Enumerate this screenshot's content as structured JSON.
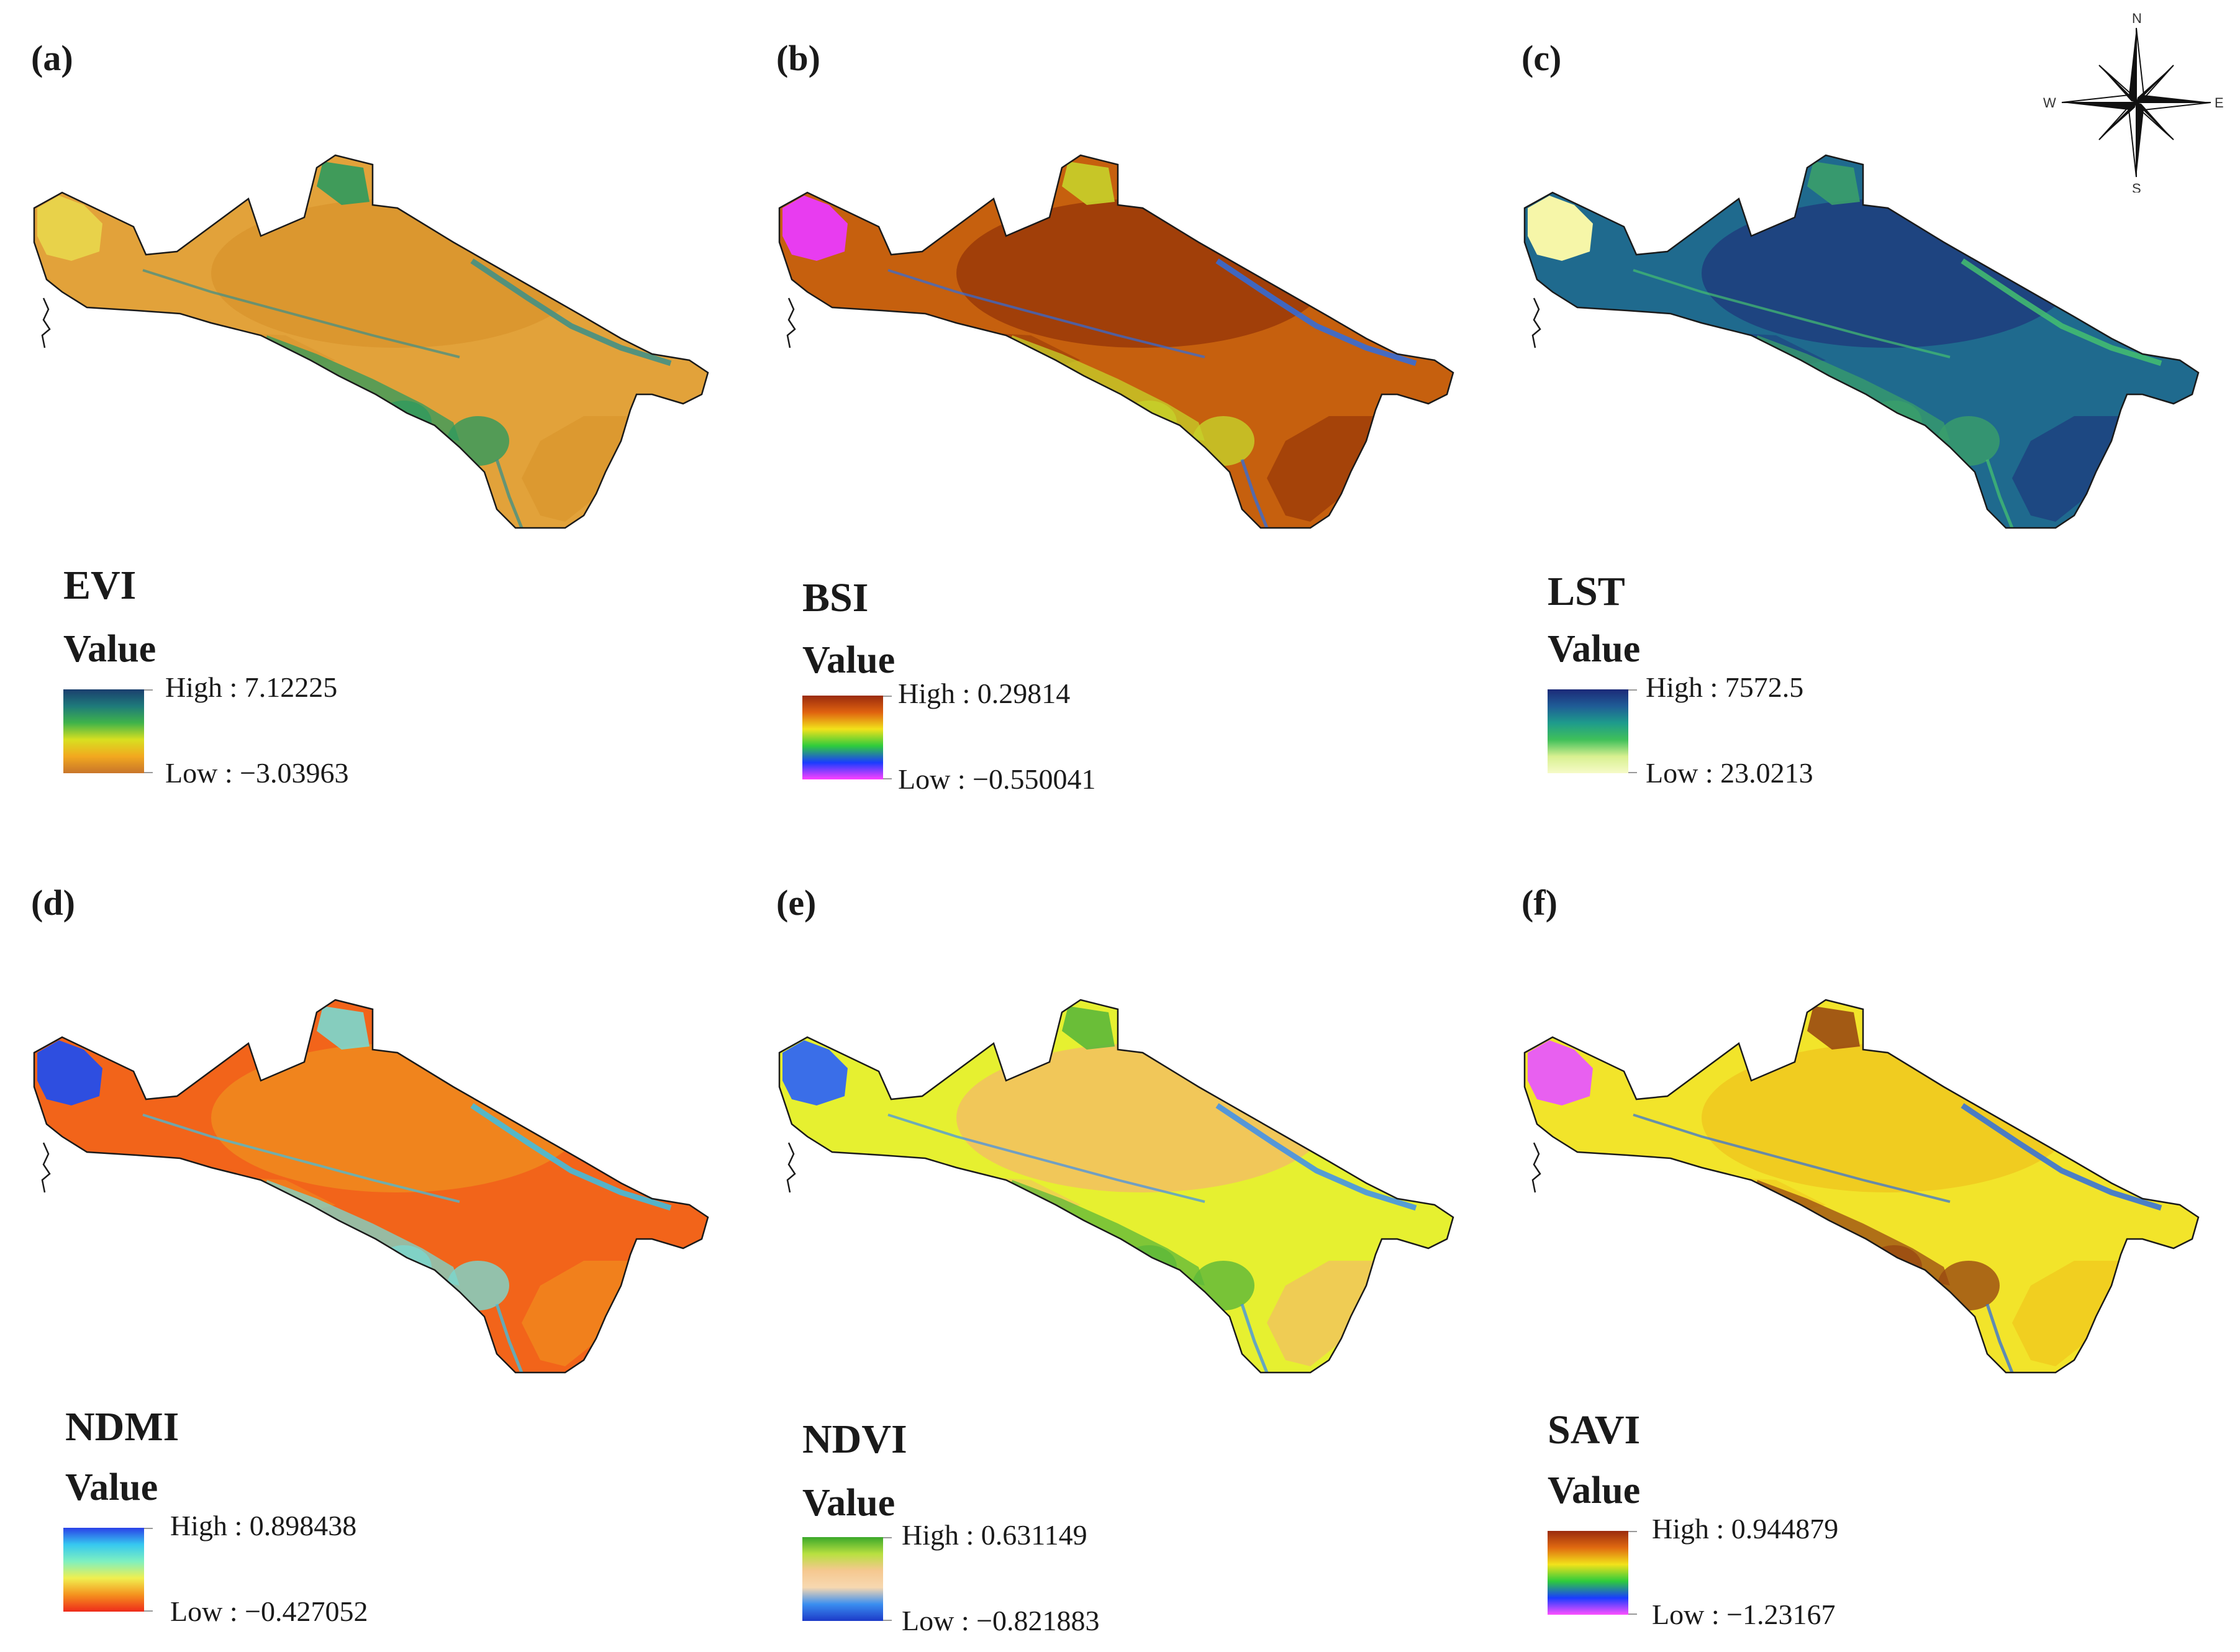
{
  "compass": {
    "n": "N",
    "s": "S",
    "e": "E",
    "w": "W"
  },
  "panels": [
    {
      "label": "(a)",
      "index": "EVI",
      "value_title": "Value",
      "high": "High : 7.12225",
      "low": "Low : −3.03963",
      "ramp": [
        "#1b3f6e",
        "#1e7a7a",
        "#3fb34a",
        "#d8e020",
        "#f2a81f",
        "#c8752a"
      ],
      "colors": {
        "base": "#e2a23a",
        "desert": "#d9952e",
        "lake": "#e8d24a",
        "veg": "#2f9a5e",
        "water": "#3a8f8a"
      }
    },
    {
      "label": "(b)",
      "index": "BSI",
      "value_title": "Value",
      "high": "High : 0.29814",
      "low": "Low : −0.550041",
      "ramp": [
        "#9a2b0e",
        "#e0620f",
        "#f2e21a",
        "#2ecc3c",
        "#1a3cff",
        "#ff40ff"
      ],
      "colors": {
        "base": "#c6600e",
        "desert": "#9a3a08",
        "lake": "#e83cf0",
        "veg": "#c6d22a",
        "water": "#2e6de0"
      }
    },
    {
      "label": "(c)",
      "index": "LST",
      "value_title": "Value",
      "high": "High : 7572.5",
      "low": "Low : 23.0213",
      "ramp": [
        "#1c2a78",
        "#1f5c96",
        "#1e9b8c",
        "#3fc05a",
        "#d8f090",
        "#f6fbc8"
      ],
      "colors": {
        "base": "#1f6a8e",
        "desert": "#1e3d7e",
        "lake": "#f6f6a8",
        "veg": "#3a9f6a",
        "water": "#44c070"
      }
    },
    {
      "label": "(d)",
      "index": "NDMI",
      "value_title": "Value",
      "high": "High : 0.898438",
      "low": "Low : −0.427052",
      "ramp": [
        "#2a40e8",
        "#36c8f0",
        "#7ef0c0",
        "#f0f050",
        "#f5921e",
        "#ee2a1a"
      ],
      "colors": {
        "base": "#f2641a",
        "desert": "#f08a1e",
        "lake": "#2e4ee0",
        "veg": "#7ad8d0",
        "water": "#3ac0e8"
      }
    },
    {
      "label": "(e)",
      "index": "NDVI",
      "value_title": "Value",
      "high": "High : 0.631149",
      "low": "Low : −0.821883",
      "ramp": [
        "#3aa82a",
        "#b8e040",
        "#f6c890",
        "#f7d8b0",
        "#3a8ef0",
        "#1c3ac8"
      ],
      "colors": {
        "base": "#e6f030",
        "desert": "#f2c060",
        "lake": "#3a6ee8",
        "veg": "#5cb83a",
        "water": "#3a8ef0"
      }
    },
    {
      "label": "(f)",
      "index": "SAVI",
      "value_title": "Value",
      "high": "High : 0.944879",
      "low": "Low : −1.23167",
      "ramp": [
        "#9a2b0e",
        "#e06a10",
        "#f2e21a",
        "#2ecc3c",
        "#1a3cff",
        "#ff50ff"
      ],
      "colors": {
        "base": "#f2e42a",
        "desert": "#f0c81e",
        "lake": "#e860f0",
        "veg": "#9a4a12",
        "water": "#2e6de0"
      }
    }
  ]
}
